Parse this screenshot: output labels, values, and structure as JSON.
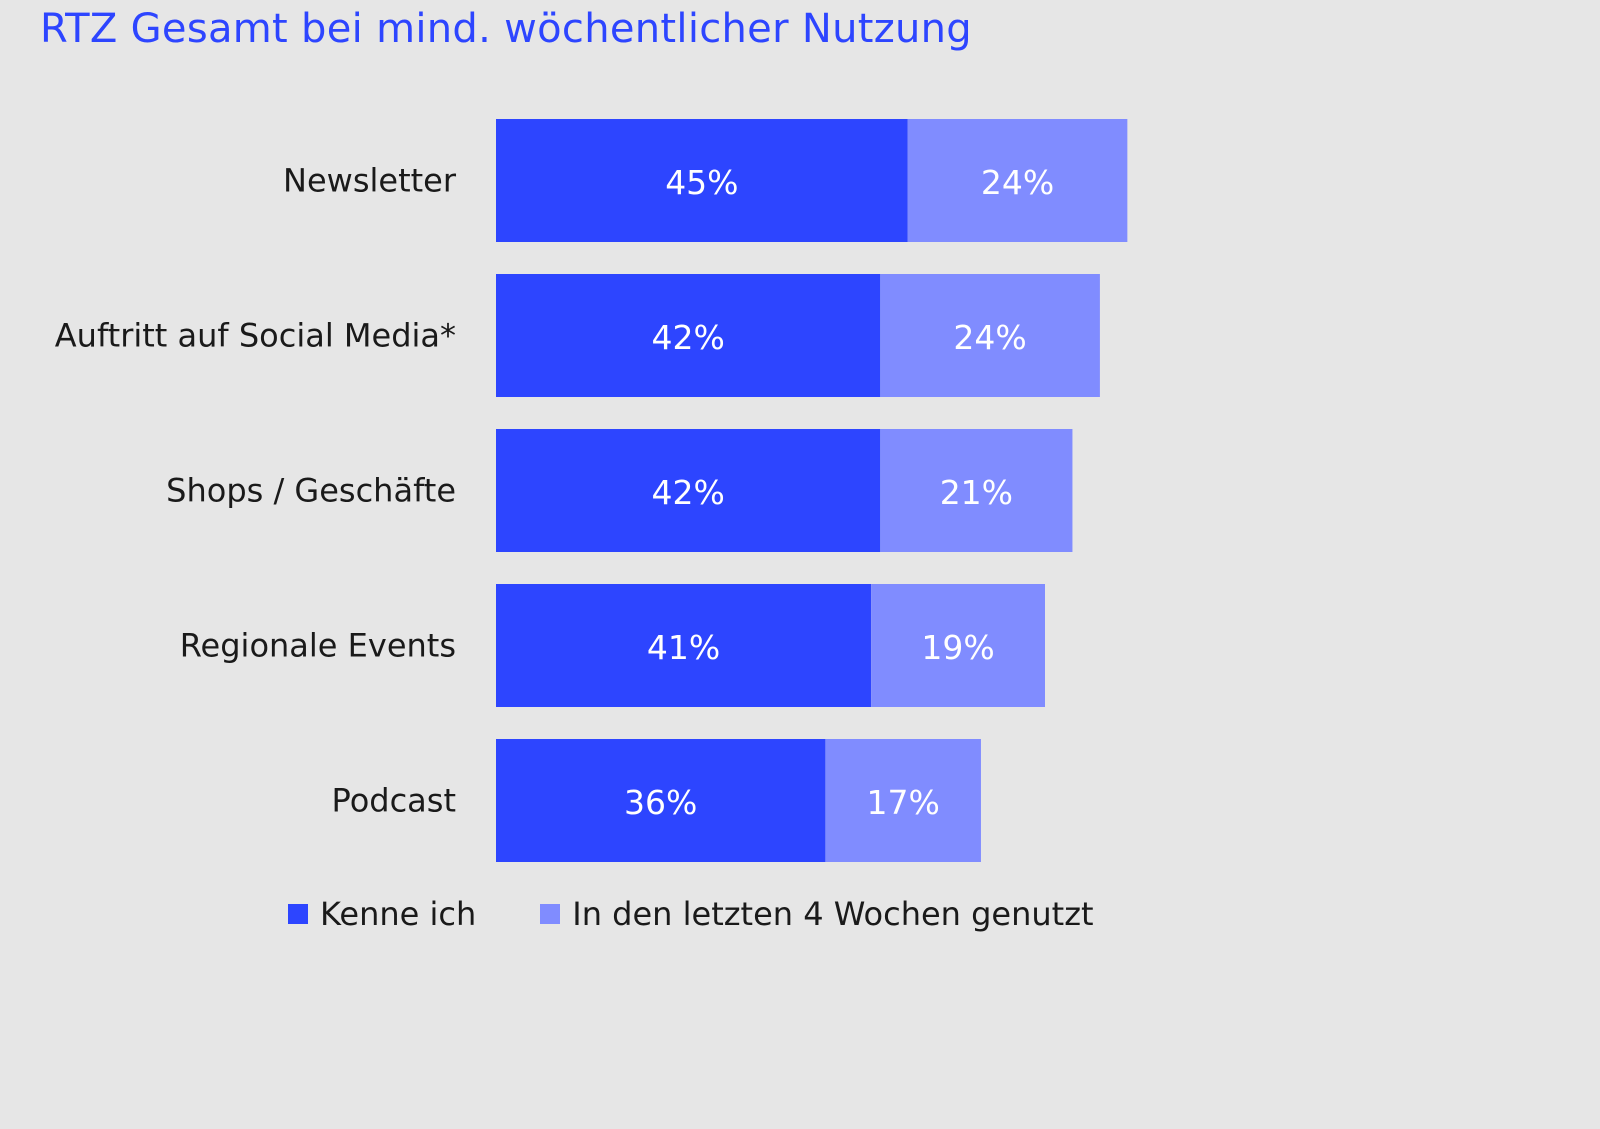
{
  "chart_data": {
    "type": "bar",
    "orientation": "horizontal",
    "stacked": true,
    "title": "RTZ Gesamt bei mind. wöchentlicher Nutzung",
    "xlabel": "",
    "ylabel": "",
    "categories": [
      "Newsletter",
      "Auftritt auf Social Media*",
      "Shops / Geschäfte",
      "Regionale Events",
      "Podcast"
    ],
    "series": [
      {
        "name": "Kenne ich",
        "values": [
          45,
          42,
          42,
          41,
          36
        ],
        "labels": [
          "45%",
          "42%",
          "42%",
          "41%",
          "36%"
        ],
        "color": "#2d45ff"
      },
      {
        "name": "In den letzten 4 Wochen genutzt",
        "values": [
          24,
          24,
          21,
          19,
          17
        ],
        "labels": [
          "24%",
          "24%",
          "21%",
          "19%",
          "17%"
        ],
        "color": "#808cff"
      }
    ],
    "grid": false,
    "legend": "bottom"
  }
}
